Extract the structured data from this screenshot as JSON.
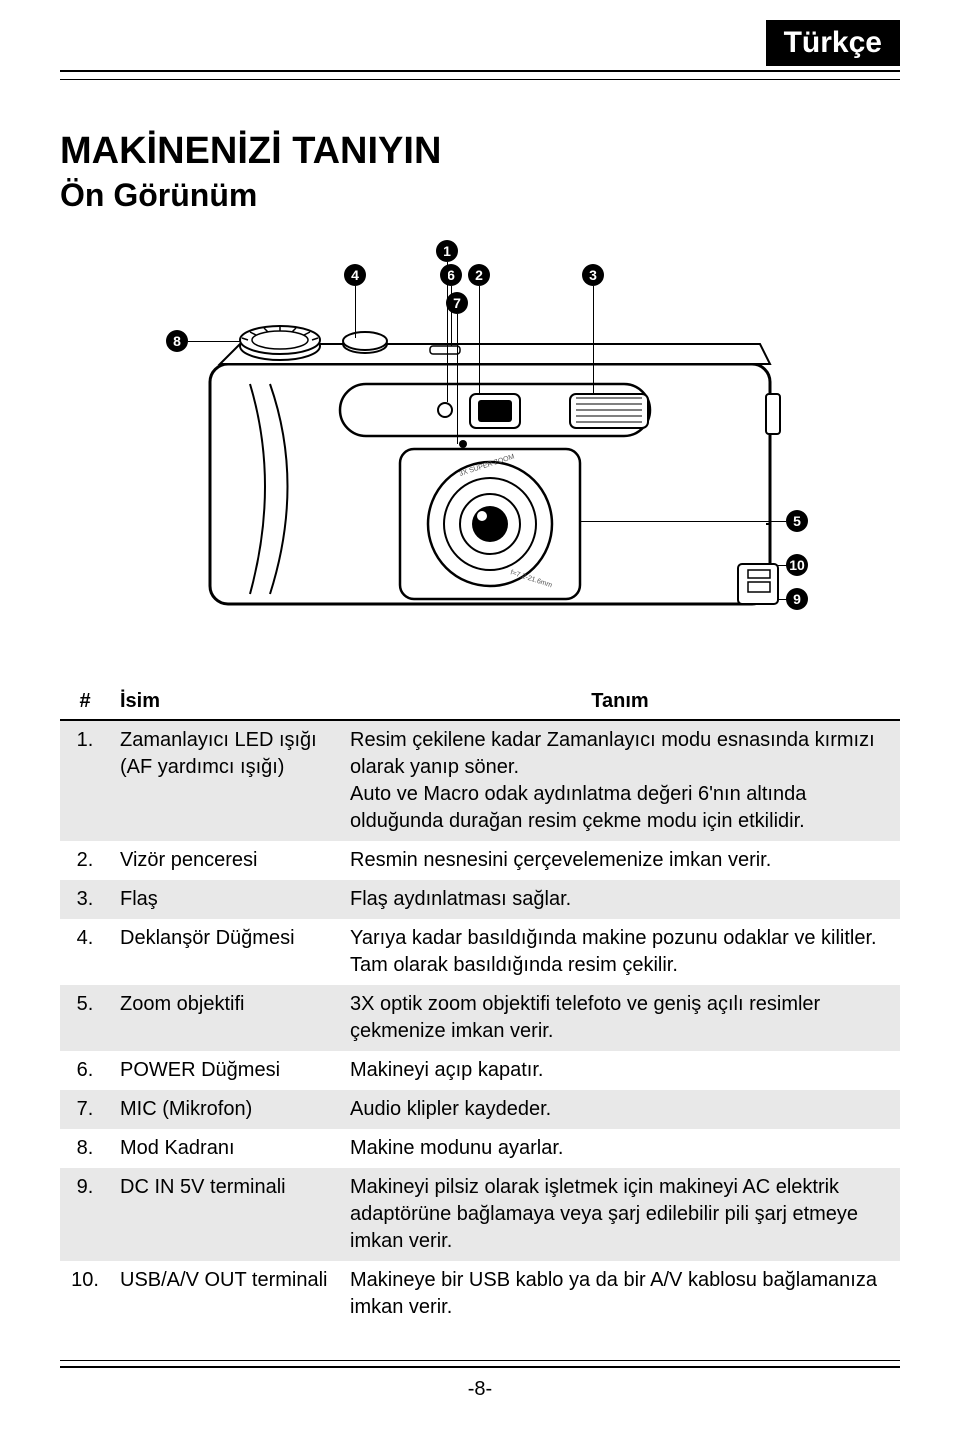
{
  "lang_tab": "Türkçe",
  "title": "MAKİNENİZİ TANIYIN",
  "subtitle": "Ön Görünüm",
  "table": {
    "headers": {
      "num": "#",
      "name": "İsim",
      "desc": "Tanım"
    },
    "rows": [
      {
        "num": "1.",
        "name": "Zamanlayıcı LED ışığı (AF yardımcı ışığı)",
        "desc": "Resim çekilene kadar Zamanlayıcı modu esnasında kırmızı olarak yanıp söner.\nAuto ve Macro odak aydınlatma değeri 6'nın altında olduğunda durağan resim çekme modu için etkilidir.",
        "shaded": true
      },
      {
        "num": "2.",
        "name": "Vizör penceresi",
        "desc": "Resmin nesnesini çerçevelemenize imkan verir.",
        "shaded": false
      },
      {
        "num": "3.",
        "name": "Flaş",
        "desc": "Flaş aydınlatması sağlar.",
        "shaded": true
      },
      {
        "num": "4.",
        "name": "Deklanşör Düğmesi",
        "desc": "Yarıya kadar basıldığında makine pozunu odaklar ve kilitler. Tam olarak basıldığında resim çekilir.",
        "shaded": false
      },
      {
        "num": "5.",
        "name": "Zoom objektifi",
        "desc": "3X optik zoom objektifi telefoto ve geniş açılı resimler çekmenize imkan verir.",
        "shaded": true
      },
      {
        "num": "6.",
        "name": "POWER Düğmesi",
        "desc": "Makineyi açıp kapatır.",
        "shaded": false
      },
      {
        "num": "7.",
        "name": "MIC (Mikrofon)",
        "desc": "Audio klipler kaydeder.",
        "shaded": true
      },
      {
        "num": "8.",
        "name": "Mod Kadranı",
        "desc": "Makine modunu ayarlar.",
        "shaded": false
      },
      {
        "num": "9.",
        "name": "DC IN 5V terminali",
        "desc": "Makineyi pilsiz olarak işletmek için makineyi AC elektrik adaptörüne bağlamaya veya şarj edilebilir pili şarj etmeye imkan verir.",
        "shaded": true
      },
      {
        "num": "10.",
        "name": "USB/A/V OUT terminali",
        "desc": "Makineye bir USB kablo ya da bir A/V kablosu bağlamanıza imkan verir.",
        "shaded": false
      }
    ]
  },
  "page_number": "-8-",
  "callouts": [
    "1",
    "2",
    "3",
    "4",
    "5",
    "6",
    "7",
    "8",
    "9",
    "10"
  ],
  "colors": {
    "bg": "#ffffff",
    "text": "#000000",
    "shade": "#e8e8e8"
  }
}
